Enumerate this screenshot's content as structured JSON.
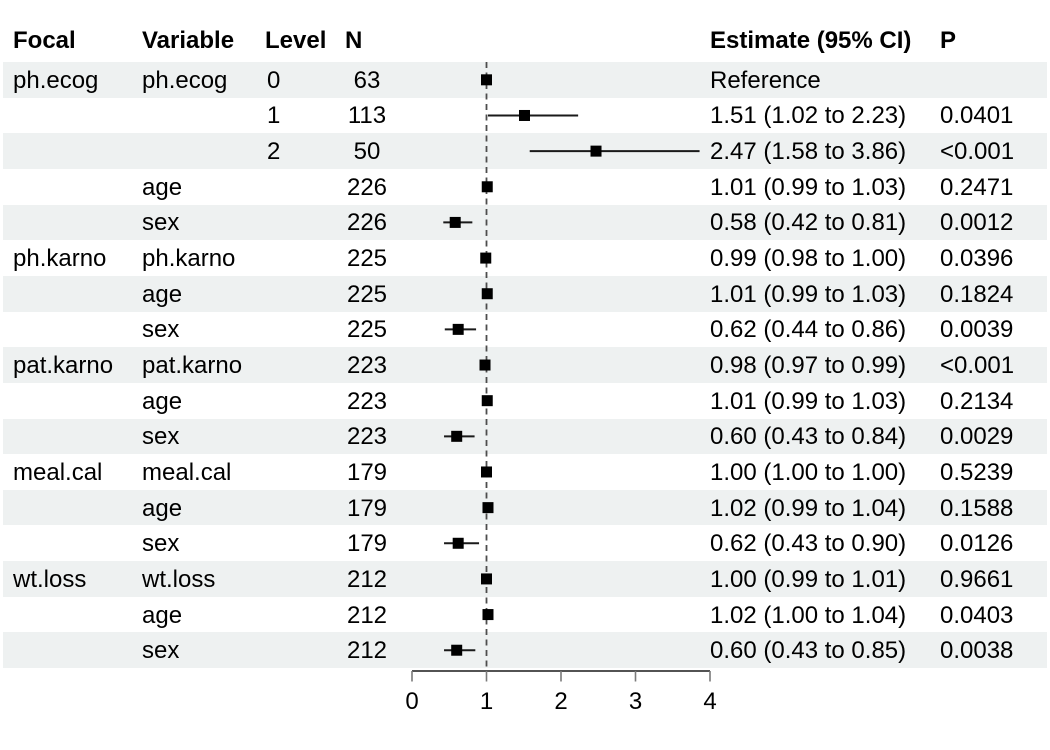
{
  "figure": {
    "background": "#ffffff",
    "band_color": "#eef1f1",
    "marker_color": "#000000",
    "ci_color": "#1a1a1a",
    "ref_line_color": "#4d4d4d",
    "axis_color": "#1a1a1a",
    "tick_color": "#7a7a7a",
    "text_color": "#000000"
  },
  "header": {
    "focal": "Focal",
    "variable": "Variable",
    "level": "Level",
    "n": "N",
    "estimate": "Estimate (95% CI)",
    "p": "P"
  },
  "axis": {
    "ticks": [
      "0",
      "1",
      "2",
      "3",
      "4"
    ],
    "min": 0,
    "max": 4,
    "reference": 1
  },
  "rows": [
    {
      "focal": "ph.ecog",
      "variable": "ph.ecog",
      "level": "0",
      "n": "63",
      "estimate": "Reference",
      "p": "",
      "est": 1.0,
      "lo": null,
      "hi": null,
      "reference": true,
      "shaded": true
    },
    {
      "focal": "",
      "variable": "",
      "level": "1",
      "n": "113",
      "estimate": "1.51 (1.02 to 2.23)",
      "p": "0.0401",
      "est": 1.51,
      "lo": 1.02,
      "hi": 2.23,
      "reference": false,
      "shaded": false
    },
    {
      "focal": "",
      "variable": "",
      "level": "2",
      "n": "50",
      "estimate": "2.47 (1.58 to 3.86)",
      "p": "<0.001",
      "est": 2.47,
      "lo": 1.58,
      "hi": 3.86,
      "reference": false,
      "shaded": true
    },
    {
      "focal": "",
      "variable": "age",
      "level": "",
      "n": "226",
      "estimate": "1.01 (0.99 to 1.03)",
      "p": "0.2471",
      "est": 1.01,
      "lo": 0.99,
      "hi": 1.03,
      "reference": false,
      "shaded": false
    },
    {
      "focal": "",
      "variable": "sex",
      "level": "",
      "n": "226",
      "estimate": "0.58 (0.42 to 0.81)",
      "p": "0.0012",
      "est": 0.58,
      "lo": 0.42,
      "hi": 0.81,
      "reference": false,
      "shaded": true
    },
    {
      "focal": "ph.karno",
      "variable": "ph.karno",
      "level": "",
      "n": "225",
      "estimate": "0.99 (0.98 to 1.00)",
      "p": "0.0396",
      "est": 0.99,
      "lo": 0.98,
      "hi": 1.0,
      "reference": false,
      "shaded": false
    },
    {
      "focal": "",
      "variable": "age",
      "level": "",
      "n": "225",
      "estimate": "1.01 (0.99 to 1.03)",
      "p": "0.1824",
      "est": 1.01,
      "lo": 0.99,
      "hi": 1.03,
      "reference": false,
      "shaded": true
    },
    {
      "focal": "",
      "variable": "sex",
      "level": "",
      "n": "225",
      "estimate": "0.62 (0.44 to 0.86)",
      "p": "0.0039",
      "est": 0.62,
      "lo": 0.44,
      "hi": 0.86,
      "reference": false,
      "shaded": false
    },
    {
      "focal": "pat.karno",
      "variable": "pat.karno",
      "level": "",
      "n": "223",
      "estimate": "0.98 (0.97 to 0.99)",
      "p": "<0.001",
      "est": 0.98,
      "lo": 0.97,
      "hi": 0.99,
      "reference": false,
      "shaded": true
    },
    {
      "focal": "",
      "variable": "age",
      "level": "",
      "n": "223",
      "estimate": "1.01 (0.99 to 1.03)",
      "p": "0.2134",
      "est": 1.01,
      "lo": 0.99,
      "hi": 1.03,
      "reference": false,
      "shaded": false
    },
    {
      "focal": "",
      "variable": "sex",
      "level": "",
      "n": "223",
      "estimate": "0.60 (0.43 to 0.84)",
      "p": "0.0029",
      "est": 0.6,
      "lo": 0.43,
      "hi": 0.84,
      "reference": false,
      "shaded": true
    },
    {
      "focal": "meal.cal",
      "variable": "meal.cal",
      "level": "",
      "n": "179",
      "estimate": "1.00 (1.00 to 1.00)",
      "p": "0.5239",
      "est": 1.0,
      "lo": 1.0,
      "hi": 1.0,
      "reference": false,
      "shaded": false
    },
    {
      "focal": "",
      "variable": "age",
      "level": "",
      "n": "179",
      "estimate": "1.02 (0.99 to 1.04)",
      "p": "0.1588",
      "est": 1.02,
      "lo": 0.99,
      "hi": 1.04,
      "reference": false,
      "shaded": true
    },
    {
      "focal": "",
      "variable": "sex",
      "level": "",
      "n": "179",
      "estimate": "0.62 (0.43 to 0.90)",
      "p": "0.0126",
      "est": 0.62,
      "lo": 0.43,
      "hi": 0.9,
      "reference": false,
      "shaded": false
    },
    {
      "focal": "wt.loss",
      "variable": "wt.loss",
      "level": "",
      "n": "212",
      "estimate": "1.00 (0.99 to 1.01)",
      "p": "0.9661",
      "est": 1.0,
      "lo": 0.99,
      "hi": 1.01,
      "reference": false,
      "shaded": true
    },
    {
      "focal": "",
      "variable": "age",
      "level": "",
      "n": "212",
      "estimate": "1.02 (1.00 to 1.04)",
      "p": "0.0403",
      "est": 1.02,
      "lo": 1.0,
      "hi": 1.04,
      "reference": false,
      "shaded": false
    },
    {
      "focal": "",
      "variable": "sex",
      "level": "",
      "n": "212",
      "estimate": "0.60 (0.43 to 0.85)",
      "p": "0.0038",
      "est": 0.6,
      "lo": 0.43,
      "hi": 0.85,
      "reference": false,
      "shaded": true
    }
  ],
  "chart_data": {
    "type": "scatter",
    "subtype": "forest-plot",
    "title": "",
    "xlabel": "",
    "xlim": [
      0,
      4
    ],
    "x_ticks": [
      0,
      1,
      2,
      3,
      4
    ],
    "reference_line_x": 1,
    "grid": false,
    "legend": false,
    "series": [
      {
        "name": "Estimate (95% CI)",
        "points": [
          {
            "label": "ph.ecog | ph.ecog | level 0 | N=63",
            "est": 1.0,
            "lo": null,
            "hi": null,
            "p": null,
            "note": "Reference"
          },
          {
            "label": "ph.ecog | ph.ecog | level 1 | N=113",
            "est": 1.51,
            "lo": 1.02,
            "hi": 2.23,
            "p": 0.0401
          },
          {
            "label": "ph.ecog | ph.ecog | level 2 | N=50",
            "est": 2.47,
            "lo": 1.58,
            "hi": 3.86,
            "p": "<0.001"
          },
          {
            "label": "ph.ecog | age | N=226",
            "est": 1.01,
            "lo": 0.99,
            "hi": 1.03,
            "p": 0.2471
          },
          {
            "label": "ph.ecog | sex | N=226",
            "est": 0.58,
            "lo": 0.42,
            "hi": 0.81,
            "p": 0.0012
          },
          {
            "label": "ph.karno | ph.karno | N=225",
            "est": 0.99,
            "lo": 0.98,
            "hi": 1.0,
            "p": 0.0396
          },
          {
            "label": "ph.karno | age | N=225",
            "est": 1.01,
            "lo": 0.99,
            "hi": 1.03,
            "p": 0.1824
          },
          {
            "label": "ph.karno | sex | N=225",
            "est": 0.62,
            "lo": 0.44,
            "hi": 0.86,
            "p": 0.0039
          },
          {
            "label": "pat.karno | pat.karno | N=223",
            "est": 0.98,
            "lo": 0.97,
            "hi": 0.99,
            "p": "<0.001"
          },
          {
            "label": "pat.karno | age | N=223",
            "est": 1.01,
            "lo": 0.99,
            "hi": 1.03,
            "p": 0.2134
          },
          {
            "label": "pat.karno | sex | N=223",
            "est": 0.6,
            "lo": 0.43,
            "hi": 0.84,
            "p": 0.0029
          },
          {
            "label": "meal.cal | meal.cal | N=179",
            "est": 1.0,
            "lo": 1.0,
            "hi": 1.0,
            "p": 0.5239
          },
          {
            "label": "meal.cal | age | N=179",
            "est": 1.02,
            "lo": 0.99,
            "hi": 1.04,
            "p": 0.1588
          },
          {
            "label": "meal.cal | sex | N=179",
            "est": 0.62,
            "lo": 0.43,
            "hi": 0.9,
            "p": 0.0126
          },
          {
            "label": "wt.loss | wt.loss | N=212",
            "est": 1.0,
            "lo": 0.99,
            "hi": 1.01,
            "p": 0.9661
          },
          {
            "label": "wt.loss | age | N=212",
            "est": 1.02,
            "lo": 1.0,
            "hi": 1.04,
            "p": 0.0403
          },
          {
            "label": "wt.loss | sex | N=212",
            "est": 0.6,
            "lo": 0.43,
            "hi": 0.85,
            "p": 0.0038
          }
        ]
      }
    ]
  }
}
